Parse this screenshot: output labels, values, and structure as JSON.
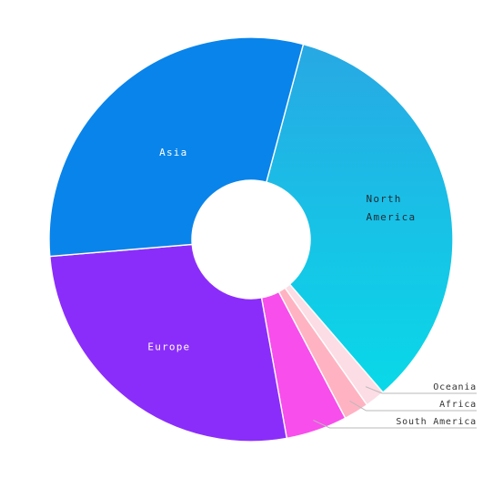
{
  "chart_data": {
    "type": "pie",
    "variant": "donut",
    "categories": [
      "North America",
      "Oceania",
      "Africa",
      "South America",
      "Europe",
      "Asia"
    ],
    "values": [
      34.5,
      1.6,
      2.0,
      4.9,
      26.5,
      30.5
    ],
    "colors": [
      "#1EC8E6",
      "#FCDDE5",
      "#FFB3C2",
      "#F84EEC",
      "#8B2DFA",
      "#0984EA"
    ],
    "legend": "none",
    "labels_inside": [
      "North America",
      "Europe",
      "Asia"
    ],
    "labels_outside": [
      "Oceania",
      "Africa",
      "South America"
    ]
  }
}
